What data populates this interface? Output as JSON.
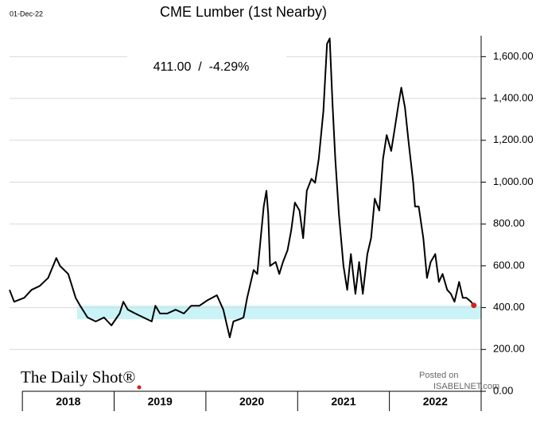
{
  "chart_data": {
    "type": "line",
    "title": "CME Lumber (1st Nearby)",
    "date_label": "01-Dec-22",
    "annotation": "411.00  /  -4.29%",
    "source": "The Daily Shot®",
    "credit_1": "Posted on",
    "credit_2": "ISABELNET.com",
    "xlim": [
      2017.86,
      2023.0
    ],
    "xticks": [
      2018,
      2019,
      2020,
      2021,
      2022
    ],
    "ylim": [
      0,
      1700
    ],
    "yticks": [
      {
        "value": 0,
        "label": "0.00"
      },
      {
        "value": 200,
        "label": "200.00"
      },
      {
        "value": 400,
        "label": "400.00"
      },
      {
        "value": 600,
        "label": "600.00"
      },
      {
        "value": 800,
        "label": "800.00"
      },
      {
        "value": 1000,
        "label": "1,000.00"
      },
      {
        "value": 1200,
        "label": "1,200.00"
      },
      {
        "value": 1400,
        "label": "1,400.00"
      },
      {
        "value": 1600,
        "label": "1,600.00"
      }
    ],
    "grid": true,
    "highlight_band": [
      345,
      410
    ],
    "highlight_color": "#c9f3f7",
    "marker_color": "#d42020",
    "series": [
      {
        "name": "CME Lumber",
        "color": "#000000",
        "x": [
          2017.86,
          2017.91,
          2018.02,
          2018.1,
          2018.19,
          2018.28,
          2018.37,
          2018.41,
          2018.5,
          2018.54,
          2018.58,
          2018.63,
          2018.71,
          2018.8,
          2018.89,
          2018.97,
          2019.06,
          2019.1,
          2019.15,
          2019.23,
          2019.32,
          2019.41,
          2019.45,
          2019.5,
          2019.58,
          2019.67,
          2019.76,
          2019.84,
          2019.93,
          2020.02,
          2020.12,
          2020.19,
          2020.23,
          2020.26,
          2020.3,
          2020.37,
          2020.41,
          2020.45,
          2020.52,
          2020.56,
          2020.63,
          2020.66,
          2020.68,
          2020.7,
          2020.76,
          2020.8,
          2020.84,
          2020.89,
          2020.93,
          2020.97,
          2021.02,
          2021.06,
          2021.1,
          2021.15,
          2021.19,
          2021.23,
          2021.28,
          2021.32,
          2021.35,
          2021.38,
          2021.41,
          2021.45,
          2021.5,
          2021.54,
          2021.58,
          2021.63,
          2021.67,
          2021.71,
          2021.76,
          2021.8,
          2021.84,
          2021.89,
          2021.93,
          2021.97,
          2022.02,
          2022.06,
          2022.1,
          2022.13,
          2022.17,
          2022.21,
          2022.26,
          2022.28,
          2022.32,
          2022.37,
          2022.41,
          2022.45,
          2022.5,
          2022.54,
          2022.58,
          2022.63,
          2022.67,
          2022.71,
          2022.76,
          2022.8,
          2022.84,
          2022.89,
          2022.92
        ],
        "values": [
          485,
          428,
          447,
          485,
          504,
          542,
          637,
          599,
          561,
          504,
          447,
          409,
          353,
          334,
          353,
          315,
          372,
          428,
          390,
          372,
          353,
          334,
          409,
          372,
          372,
          390,
          372,
          409,
          409,
          436,
          459,
          390,
          315,
          258,
          334,
          345,
          353,
          447,
          580,
          561,
          883,
          959,
          845,
          599,
          618,
          561,
          618,
          675,
          770,
          902,
          864,
          732,
          959,
          1016,
          997,
          1111,
          1338,
          1661,
          1687,
          1376,
          1111,
          845,
          599,
          485,
          656,
          466,
          618,
          466,
          656,
          732,
          921,
          864,
          1111,
          1225,
          1149,
          1262,
          1376,
          1452,
          1357,
          1187,
          997,
          883,
          883,
          732,
          542,
          618,
          656,
          523,
          561,
          485,
          466,
          428,
          523,
          447,
          447,
          428,
          411
        ]
      }
    ]
  }
}
